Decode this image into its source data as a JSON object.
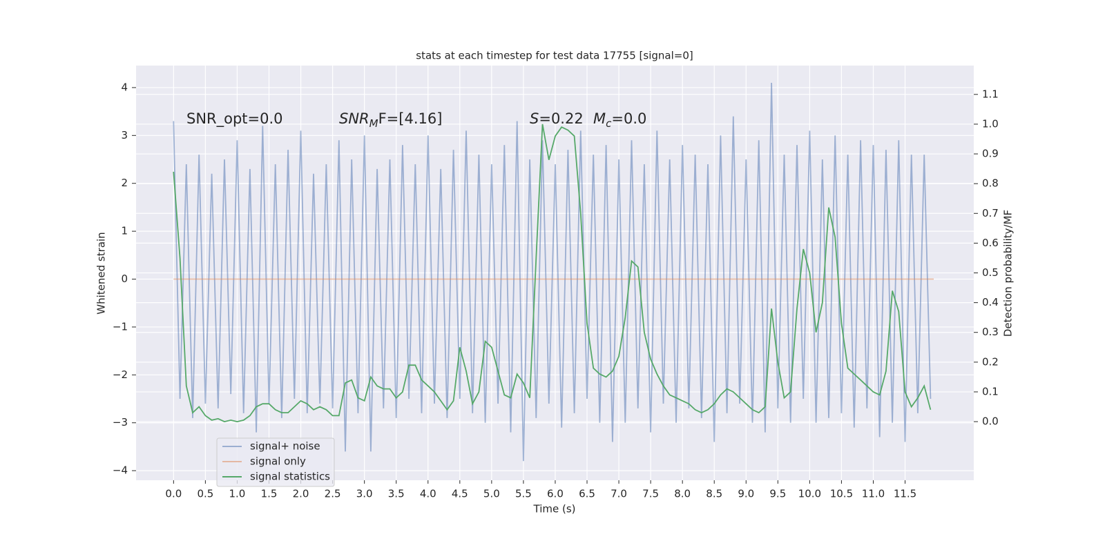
{
  "chart_data": {
    "type": "line",
    "title": "stats at each timestep for test data 17755 [signal=0]",
    "xlabel": "Time (s)",
    "ylabel": "Whitened strain",
    "y2label": "Detection probability/MF",
    "annotations": [
      {
        "text": "SNR_opt=0.0"
      },
      {
        "base": "SNR",
        "sub": "M",
        "rest": "F=[4.16]"
      },
      {
        "base": "S",
        "rest": "=0.22"
      },
      {
        "base": "M",
        "sub": "c",
        "rest": "=0.0"
      }
    ],
    "xlim": [
      -0.59,
      12.58
    ],
    "ylim": [
      -4.2,
      4.46
    ],
    "y2lim": [
      -0.197,
      1.197
    ],
    "xticks": [
      {
        "value": 0,
        "label": "0.0"
      },
      0.5,
      {
        "value": 1,
        "label": "1.0"
      },
      1.5,
      {
        "value": 2,
        "label": "2.0"
      },
      2.5,
      {
        "value": 3,
        "label": "3.0"
      },
      3.5,
      {
        "value": 4,
        "label": "4.0"
      },
      4.5,
      {
        "value": 5,
        "label": "5.0"
      },
      5.5,
      {
        "value": 6,
        "label": "6.0"
      },
      6.5,
      {
        "value": 7,
        "label": "7.0"
      },
      7.5,
      {
        "value": 8,
        "label": "8.0"
      },
      8.5,
      {
        "value": 9,
        "label": "9.0"
      },
      9.5,
      {
        "value": 10,
        "label": "10.0"
      },
      10.5,
      {
        "value": 11,
        "label": "11.0"
      },
      11.5
    ],
    "yticks": [
      {
        "value": -4,
        "label": "−4"
      },
      {
        "value": -3,
        "label": "−3"
      },
      {
        "value": -2,
        "label": "−2"
      },
      {
        "value": -1,
        "label": "−1"
      },
      0,
      1,
      2,
      3,
      4
    ],
    "y2ticks": [
      {
        "value": 0,
        "label": "0.0"
      },
      0.1,
      0.2,
      0.3,
      0.4,
      0.5,
      0.6,
      0.7,
      0.8,
      0.9,
      {
        "value": 1,
        "label": "1.0"
      },
      1.1
    ],
    "grid": true,
    "legend": "lower left",
    "background": "#eaeaf2",
    "series": [
      {
        "name": "signal+ noise",
        "color": "#4c72b0",
        "opacity": 0.5,
        "x": [
          0,
          0.1,
          0.2,
          0.3,
          0.4,
          0.5,
          0.6,
          0.7,
          0.8,
          0.9,
          1,
          1.1,
          1.2,
          1.3,
          1.4,
          1.5,
          1.6,
          1.7,
          1.8,
          1.9,
          2,
          2.1,
          2.2,
          2.3,
          2.4,
          2.5,
          2.6,
          2.7,
          2.8,
          2.9,
          3,
          3.1,
          3.2,
          3.3,
          3.4,
          3.5,
          3.6,
          3.7,
          3.8,
          3.9,
          4,
          4.1,
          4.2,
          4.3,
          4.4,
          4.5,
          4.6,
          4.7,
          4.8,
          4.9,
          5,
          5.1,
          5.2,
          5.3,
          5.4,
          5.5,
          5.6,
          5.7,
          5.8,
          5.9,
          6,
          6.1,
          6.2,
          6.3,
          6.4,
          6.5,
          6.6,
          6.7,
          6.8,
          6.9,
          7,
          7.1,
          7.2,
          7.3,
          7.4,
          7.5,
          7.6,
          7.7,
          7.8,
          7.9,
          8,
          8.1,
          8.2,
          8.3,
          8.4,
          8.5,
          8.6,
          8.7,
          8.8,
          8.9,
          9,
          9.1,
          9.2,
          9.3,
          9.4,
          9.5,
          9.6,
          9.7,
          9.8,
          9.9,
          10,
          10.1,
          10.2,
          10.3,
          10.4,
          10.5,
          10.6,
          10.7,
          10.8,
          10.9,
          11,
          11.1,
          11.2,
          11.3,
          11.4,
          11.5,
          11.6,
          11.7,
          11.8,
          11.9
        ],
        "values": [
          3.3,
          -2.5,
          2.4,
          -2.9,
          2.6,
          -2.6,
          2.2,
          -2.7,
          2.5,
          -2.4,
          2.9,
          -2.8,
          2.3,
          -3.2,
          3.2,
          -2.6,
          2.4,
          -2.9,
          2.7,
          -2.5,
          3.1,
          -2.8,
          2.2,
          -2.6,
          2.4,
          -2.7,
          2.9,
          -3.6,
          2.5,
          -2.8,
          3.0,
          -3.6,
          2.3,
          -2.7,
          2.5,
          -2.9,
          2.8,
          -2.5,
          2.4,
          -2.8,
          3.0,
          -2.6,
          2.3,
          -2.9,
          2.7,
          -2.5,
          3.1,
          -2.8,
          2.6,
          -3.0,
          2.4,
          -2.6,
          2.8,
          -3.2,
          3.3,
          -3.8,
          2.5,
          -2.9,
          2.9,
          -2.6,
          2.4,
          -3.1,
          2.7,
          -2.8,
          3.1,
          -2.5,
          2.6,
          -3.0,
          2.8,
          -3.4,
          2.5,
          -3.0,
          2.9,
          -2.7,
          2.4,
          -3.2,
          3.1,
          -2.6,
          2.5,
          -3.0,
          2.8,
          -2.7,
          2.6,
          -2.9,
          2.4,
          -3.4,
          3.0,
          -2.8,
          3.4,
          -2.6,
          2.5,
          -3.0,
          2.9,
          -3.2,
          4.1,
          -2.7,
          2.6,
          -3.0,
          2.8,
          -2.5,
          3.1,
          -3.0,
          2.5,
          -2.9,
          3.0,
          -2.8,
          2.6,
          -3.1,
          2.9,
          -2.7,
          2.8,
          -3.3,
          2.7,
          -3.0,
          2.9,
          -3.4,
          2.6,
          -2.8,
          2.6,
          -2.5
        ]
      },
      {
        "name": "signal only",
        "color": "#dd8452",
        "opacity": 0.5,
        "x": [
          0,
          11.95
        ],
        "values": [
          0,
          0
        ]
      },
      {
        "name": "signal statistics",
        "color": "#55a868",
        "opacity": 1,
        "axis": "y2",
        "x": [
          0,
          0.1,
          0.2,
          0.3,
          0.4,
          0.5,
          0.6,
          0.7,
          0.8,
          0.9,
          1,
          1.1,
          1.2,
          1.3,
          1.4,
          1.5,
          1.6,
          1.7,
          1.8,
          1.9,
          2,
          2.1,
          2.2,
          2.3,
          2.4,
          2.5,
          2.6,
          2.7,
          2.8,
          2.9,
          3,
          3.1,
          3.2,
          3.3,
          3.4,
          3.5,
          3.6,
          3.7,
          3.8,
          3.9,
          4,
          4.1,
          4.2,
          4.3,
          4.4,
          4.5,
          4.6,
          4.7,
          4.8,
          4.9,
          5,
          5.1,
          5.2,
          5.3,
          5.4,
          5.5,
          5.6,
          5.7,
          5.8,
          5.9,
          6,
          6.1,
          6.2,
          6.3,
          6.4,
          6.5,
          6.6,
          6.7,
          6.8,
          6.9,
          7,
          7.1,
          7.2,
          7.3,
          7.4,
          7.5,
          7.6,
          7.7,
          7.8,
          7.9,
          8,
          8.1,
          8.2,
          8.3,
          8.4,
          8.5,
          8.6,
          8.7,
          8.8,
          8.9,
          9,
          9.1,
          9.2,
          9.3,
          9.4,
          9.5,
          9.6,
          9.7,
          9.8,
          9.9,
          10,
          10.1,
          10.2,
          10.3,
          10.4,
          10.5,
          10.6,
          10.7,
          10.8,
          10.9,
          11,
          11.1,
          11.2,
          11.3,
          11.4,
          11.5,
          11.6,
          11.7,
          11.8,
          11.9
        ],
        "values": [
          0.84,
          0.55,
          0.12,
          0.03,
          0.05,
          0.02,
          0.005,
          0.01,
          0,
          0.005,
          0,
          0.005,
          0.02,
          0.05,
          0.06,
          0.06,
          0.04,
          0.03,
          0.03,
          0.05,
          0.07,
          0.06,
          0.04,
          0.05,
          0.04,
          0.02,
          0.02,
          0.13,
          0.14,
          0.08,
          0.07,
          0.15,
          0.12,
          0.11,
          0.11,
          0.08,
          0.1,
          0.19,
          0.19,
          0.14,
          0.12,
          0.1,
          0.07,
          0.04,
          0.07,
          0.25,
          0.17,
          0.06,
          0.1,
          0.27,
          0.25,
          0.17,
          0.09,
          0.08,
          0.16,
          0.13,
          0.08,
          0.55,
          1.0,
          0.88,
          0.96,
          0.99,
          0.98,
          0.96,
          0.7,
          0.33,
          0.18,
          0.16,
          0.15,
          0.17,
          0.22,
          0.35,
          0.54,
          0.52,
          0.3,
          0.21,
          0.16,
          0.12,
          0.09,
          0.08,
          0.07,
          0.06,
          0.04,
          0.03,
          0.04,
          0.06,
          0.09,
          0.11,
          0.1,
          0.08,
          0.06,
          0.04,
          0.03,
          0.05,
          0.38,
          0.2,
          0.08,
          0.1,
          0.38,
          0.58,
          0.5,
          0.3,
          0.4,
          0.72,
          0.62,
          0.33,
          0.18,
          0.16,
          0.14,
          0.12,
          0.1,
          0.09,
          0.17,
          0.44,
          0.37,
          0.1,
          0.05,
          0.08,
          0.12,
          0.04
        ]
      }
    ]
  }
}
